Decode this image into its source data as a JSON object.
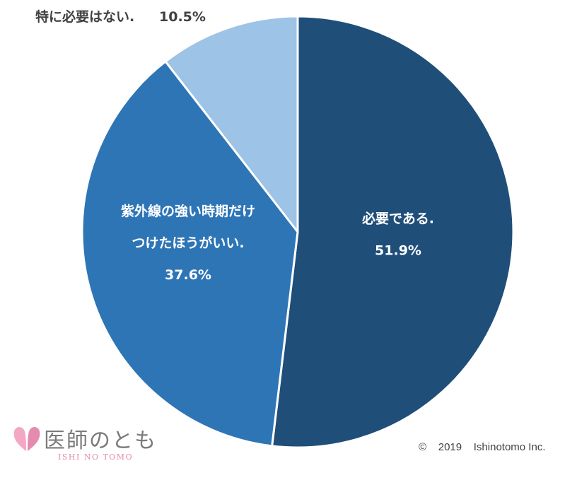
{
  "chart_data": {
    "type": "pie",
    "start_angle_deg": 0,
    "direction": "clockwise",
    "colors": [
      "#1f4e79",
      "#2e75b6",
      "#9dc3e6"
    ],
    "slices": [
      {
        "label_lines": [
          "必要である."
        ],
        "value": 51.9,
        "value_label": "51.9%"
      },
      {
        "label_lines": [
          "紫外線の強い時期だけ",
          "つけたほうがいい."
        ],
        "value": 37.6,
        "value_label": "37.6%"
      },
      {
        "label_lines": [
          "特に必要はない."
        ],
        "value": 10.5,
        "value_label": "10.5%"
      }
    ]
  },
  "logo": {
    "text_jp": "医師のとも",
    "text_en": "ISHI NO TOMO",
    "mark_icon": "two-pink-hearts-icon"
  },
  "footer": {
    "copyright": "©    2019    Ishinotomo Inc."
  }
}
